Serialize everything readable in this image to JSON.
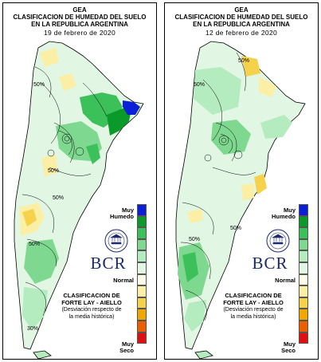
{
  "panels": [
    {
      "org": "GEA",
      "title_line1": "CLASIFICACION DE HUMEDAD DEL SUELO",
      "title_line2": "EN LA REPUBLICA ARGENTINA",
      "date": "19 de febrero de 2020",
      "contour_labels": [
        "50%",
        "50%",
        "50%",
        "30%",
        "50%"
      ]
    },
    {
      "org": "GEA",
      "title_line1": "CLASIFICACION DE HUMEDAD DEL SUELO",
      "title_line2": "EN LA REPUBLICA ARGENTINA",
      "date": "12 de febrero de 2020",
      "contour_labels": [
        "50%",
        "50%",
        "50%",
        "50%"
      ]
    }
  ],
  "legend": {
    "top_label_1": "Muy",
    "top_label_2": "Humedo",
    "mid_label": "Normal",
    "bottom_label_1": "Muy",
    "bottom_label_2": "Seco",
    "colors": [
      "#0b1fd6",
      "#0a9a2a",
      "#3cc05a",
      "#7fd88f",
      "#b4ecc0",
      "#e2f6e4",
      "#fffde8",
      "#fbefa6",
      "#f6d24b",
      "#f0a800",
      "#ec5f00",
      "#e01010"
    ]
  },
  "brand": {
    "name": "BCR",
    "seal_text": "BOLSA DE COMERCIO DE ROSARIO"
  },
  "method": {
    "title_1": "CLASIFICACION DE",
    "title_2": "FORTE LAY - AIELLO",
    "desc_1": "(Desviación respecto de",
    "desc_2": "la media histórica)"
  }
}
